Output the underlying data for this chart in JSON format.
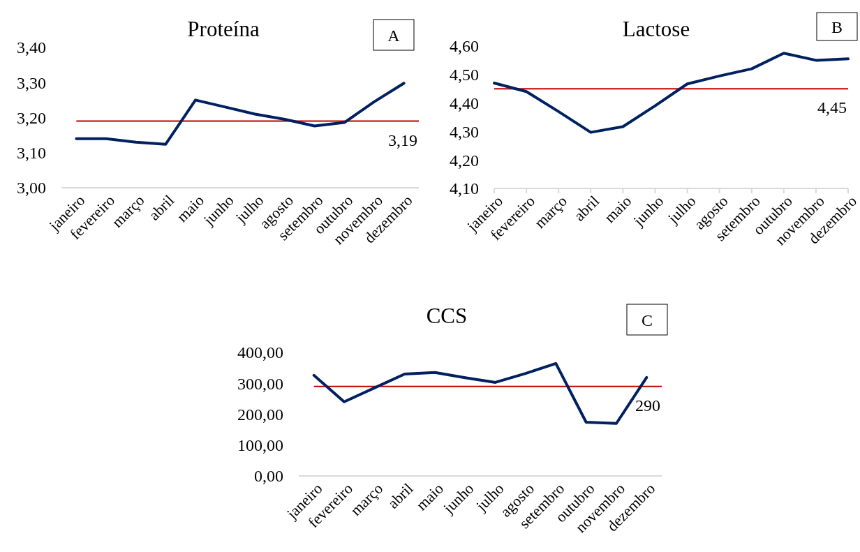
{
  "chart_data": [
    {
      "type": "line",
      "title": "Proteína",
      "annotations": [
        "A"
      ],
      "categories": [
        "janeiro",
        "fevereiro",
        "março",
        "abril",
        "maio",
        "junho",
        "julho",
        "agosto",
        "setembro",
        "outubro",
        "novembro",
        "dezembro"
      ],
      "series": [
        {
          "color": "#002060",
          "values": [
            3.14,
            3.14,
            3.13,
            3.124,
            3.25,
            3.23,
            3.21,
            3.195,
            3.176,
            3.186,
            3.245,
            3.298
          ]
        }
      ],
      "ylim": [
        3.0,
        3.4
      ],
      "yticks": [
        {
          "value": 3.0,
          "label": "3,00"
        },
        {
          "value": 3.1,
          "label": "3,10"
        },
        {
          "value": 3.2,
          "label": "3,20"
        },
        {
          "value": 3.3,
          "label": "3,30"
        },
        {
          "value": 3.4,
          "label": "3,40"
        }
      ],
      "ref_lines": [
        {
          "axis": "y",
          "value": 3.19,
          "label": "3,19",
          "color": "#c00000"
        }
      ]
    },
    {
      "type": "line",
      "title": "Lactose",
      "annotations": [
        "B"
      ],
      "categories": [
        "janeiro",
        "fevereiro",
        "março",
        "abril",
        "maio",
        "junho",
        "julho",
        "agosto",
        "setembro",
        "outubro",
        "novembro",
        "dezembro"
      ],
      "series": [
        {
          "color": "#002060",
          "values": [
            4.47,
            4.44,
            4.37,
            4.297,
            4.317,
            4.39,
            4.467,
            4.495,
            4.52,
            4.575,
            4.55,
            4.555
          ]
        }
      ],
      "ylim": [
        4.1,
        4.6
      ],
      "yticks": [
        {
          "value": 4.1,
          "label": "4,10"
        },
        {
          "value": 4.2,
          "label": "4,20"
        },
        {
          "value": 4.3,
          "label": "4,30"
        },
        {
          "value": 4.4,
          "label": "4,40"
        },
        {
          "value": 4.5,
          "label": "4,50"
        },
        {
          "value": 4.6,
          "label": "4,60"
        }
      ],
      "ref_lines": [
        {
          "axis": "y",
          "value": 4.45,
          "label": "4,45",
          "color": "#c00000"
        }
      ]
    },
    {
      "type": "line",
      "title": "CCS",
      "annotations": [
        "C"
      ],
      "categories": [
        "janeiro",
        "fevereiro",
        "março",
        "abril",
        "maio",
        "junho",
        "julho",
        "agosto",
        "setembro",
        "outubro",
        "novembro",
        "dezembro"
      ],
      "series": [
        {
          "color": "#002060",
          "values": [
            326,
            240,
            285,
            330,
            335,
            318,
            303,
            332,
            364,
            174,
            170,
            319
          ]
        }
      ],
      "ylim": [
        0,
        400
      ],
      "yticks": [
        {
          "value": 0,
          "label": "0,00"
        },
        {
          "value": 100,
          "label": "100,00"
        },
        {
          "value": 200,
          "label": "200,00"
        },
        {
          "value": 300,
          "label": "300,00"
        },
        {
          "value": 400,
          "label": "400,00"
        }
      ],
      "ref_lines": [
        {
          "axis": "y",
          "value": 290,
          "label": "290",
          "color": "#c00000"
        }
      ]
    }
  ]
}
